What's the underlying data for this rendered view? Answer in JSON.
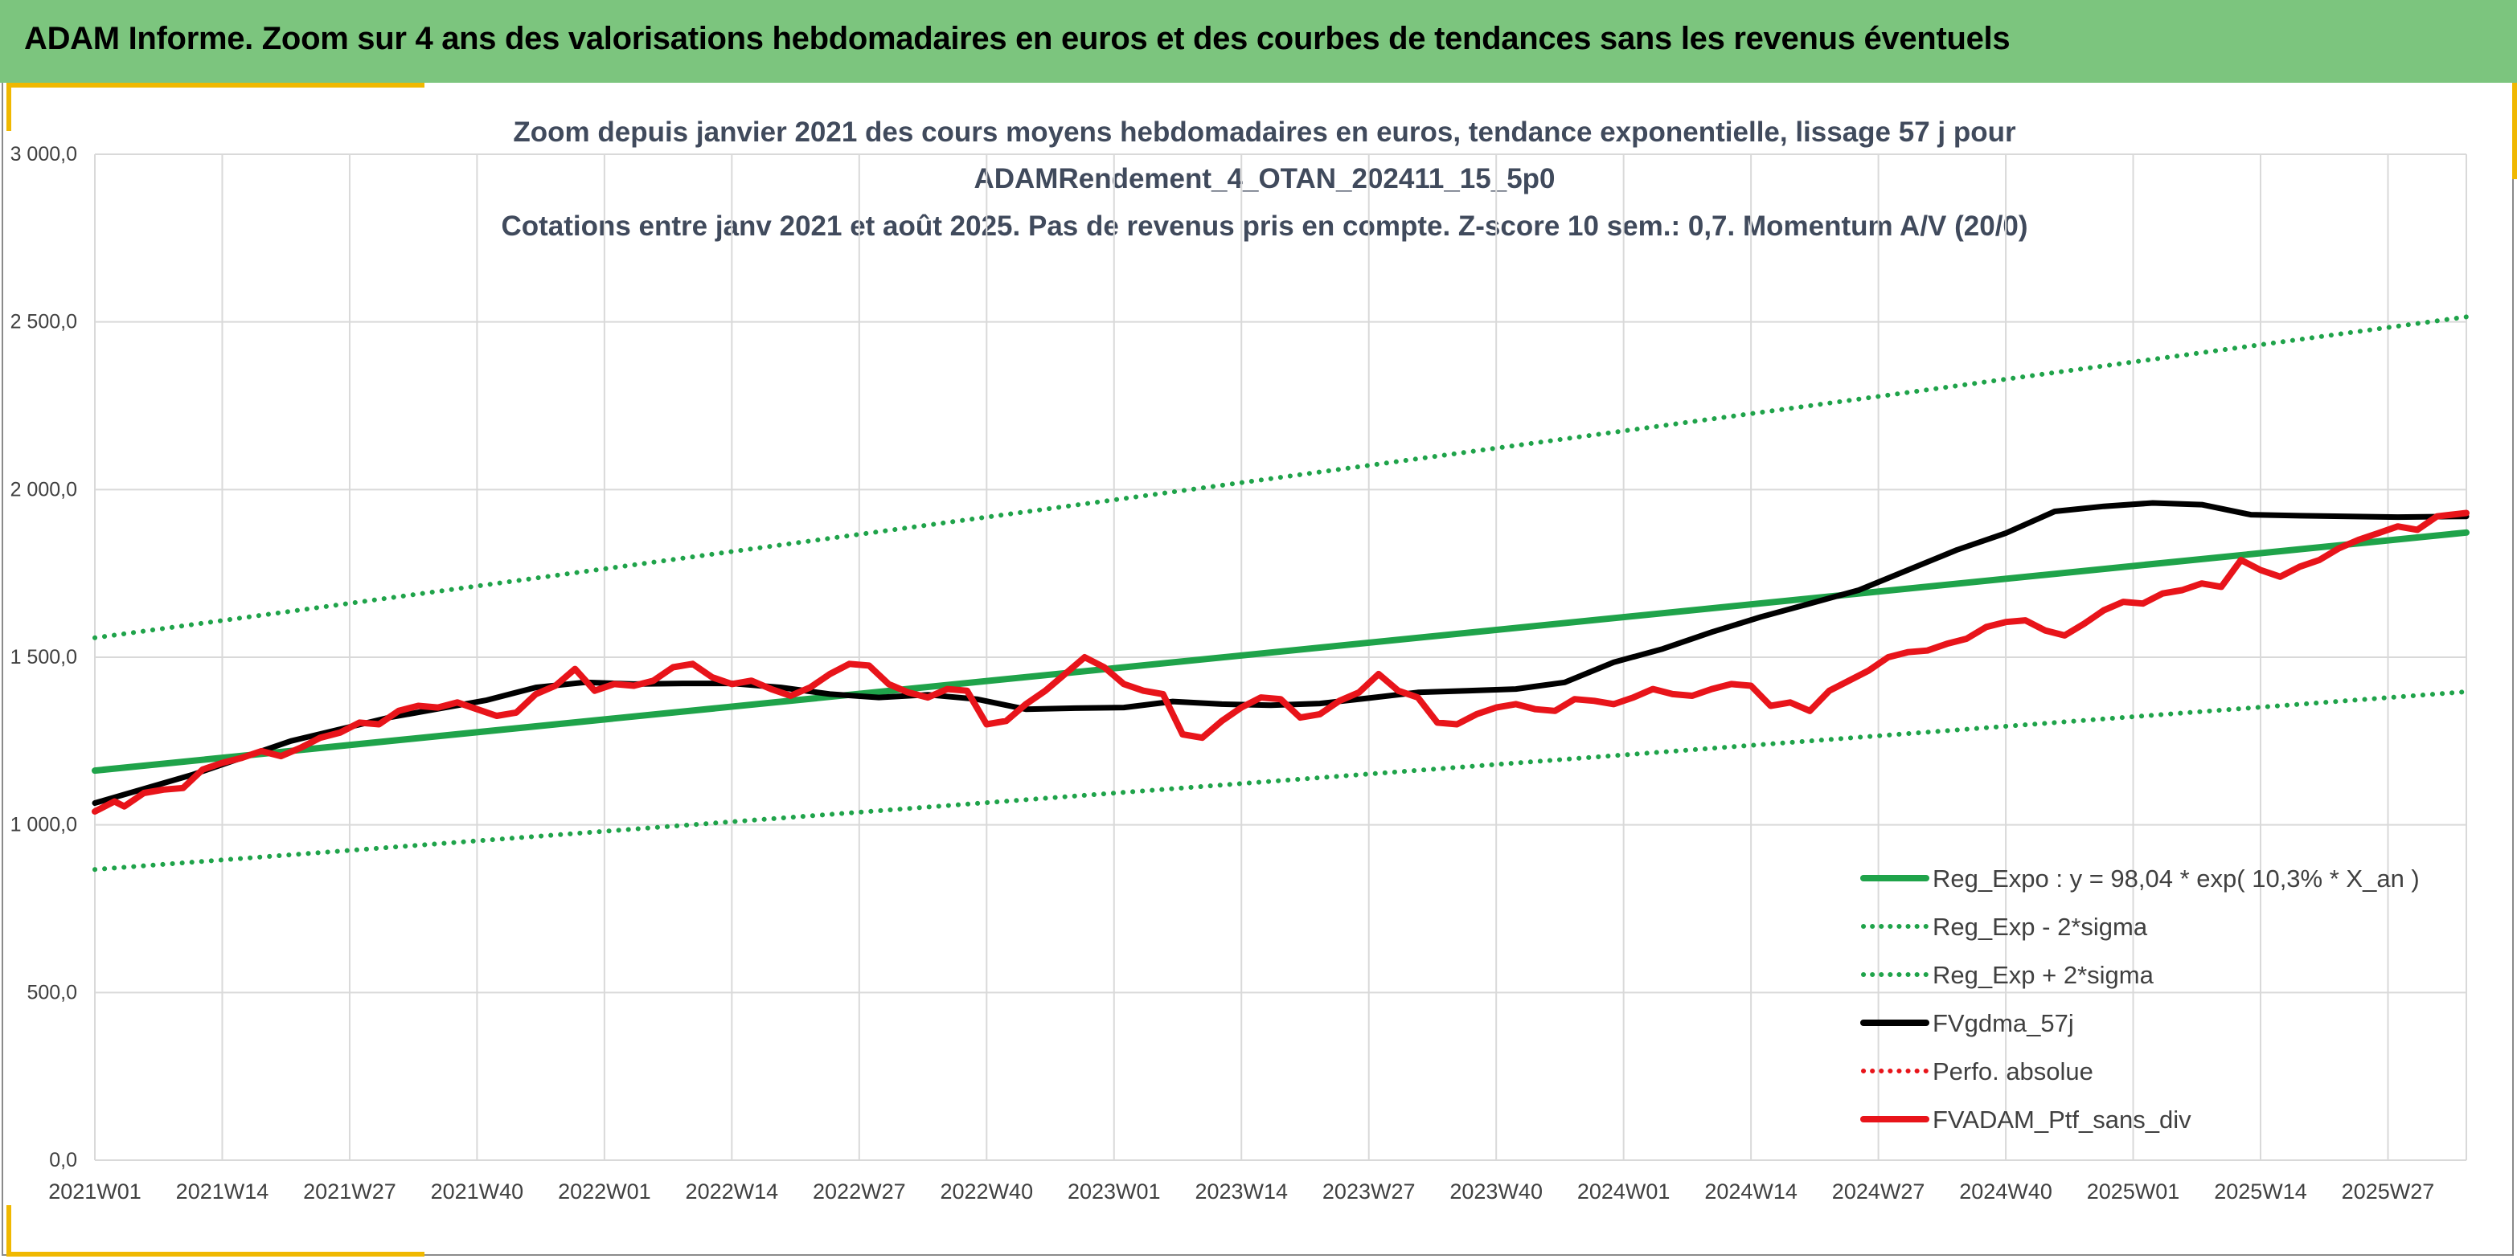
{
  "banner": {
    "title": "ADAM Informe. Zoom sur 4 ans des valorisations hebdomadaires en euros et des courbes de tendances sans les revenus éventuels"
  },
  "colors": {
    "banner_bg": "#7cc57e",
    "accent": "#f0b800",
    "reg_expo": "#1fa34a",
    "fvgdma": "#000000",
    "perfo": "#e8141a",
    "fvadam": "#e8141a",
    "grid": "#d9d9d9",
    "title_text": "#404a5c",
    "tick_text": "#404040"
  },
  "chart_data": {
    "type": "line",
    "title_lines": [
      "Zoom depuis janvier 2021 des cours moyens hebdomadaires en euros, tendance exponentielle, lissage 57 j pour",
      "ADAMRendement_4_OTAN_202411_15_5p0",
      "Cotations entre janv 2021 et août 2025. Pas de revenus pris en compte. Z-score 10 sem.: 0,7. Momentum A/V (20/0)"
    ],
    "xlabel": "",
    "ylabel": "",
    "ylim": [
      0,
      3000
    ],
    "yticks": [
      "0,0",
      "500,0",
      "1 000,0",
      "1 500,0",
      "2 000,0",
      "2 500,0",
      "3 000,0"
    ],
    "ytick_values": [
      0,
      500,
      1000,
      1500,
      2000,
      2500,
      3000
    ],
    "xlim": [
      0,
      242
    ],
    "xticks": [
      "2021W01",
      "2021W14",
      "2021W27",
      "2021W40",
      "2022W01",
      "2022W14",
      "2022W27",
      "2022W40",
      "2023W01",
      "2023W14",
      "2023W27",
      "2023W40",
      "2024W01",
      "2024W14",
      "2024W27",
      "2024W40",
      "2025W01",
      "2025W14",
      "2025W27"
    ],
    "xtick_values": [
      0,
      13,
      26,
      39,
      52,
      65,
      78,
      91,
      104,
      117,
      130,
      143,
      156,
      169,
      182,
      195,
      208,
      221,
      234
    ],
    "grid": true,
    "legend_position": "bottom-right",
    "series": [
      {
        "name": "Reg_Expo : y = 98,04 * exp( 10,3% *  X_an )",
        "style": "solid",
        "x": [
          0,
          242
        ],
        "y": [
          1162,
          1872
        ]
      },
      {
        "name": "Reg_Exp - 2*sigma",
        "style": "dotted",
        "x": [
          0,
          242
        ],
        "y": [
          867,
          1397
        ]
      },
      {
        "name": "Reg_Exp + 2*sigma",
        "style": "dotted",
        "x": [
          0,
          242
        ],
        "y": [
          1558,
          2515
        ]
      },
      {
        "name": "FVgdma_57j",
        "style": "solid",
        "x": [
          0,
          10,
          20,
          30,
          40,
          45,
          50,
          55,
          60,
          65,
          70,
          75,
          80,
          85,
          90,
          95,
          100,
          105,
          110,
          115,
          120,
          125,
          130,
          135,
          140,
          145,
          150,
          155,
          160,
          165,
          170,
          175,
          180,
          185,
          190,
          195,
          200,
          205,
          210,
          215,
          220,
          225,
          230,
          235,
          242
        ],
        "y": [
          1065,
          1150,
          1250,
          1320,
          1372,
          1410,
          1425,
          1420,
          1422,
          1422,
          1410,
          1390,
          1380,
          1388,
          1375,
          1345,
          1348,
          1350,
          1368,
          1360,
          1357,
          1362,
          1378,
          1395,
          1400,
          1405,
          1425,
          1485,
          1525,
          1575,
          1620,
          1660,
          1700,
          1760,
          1820,
          1870,
          1935,
          1950,
          1960,
          1955,
          1925,
          1922,
          1920,
          1918,
          1920
        ]
      },
      {
        "name": "Perfo. absolue",
        "style": "dotted",
        "x": [],
        "y": []
      },
      {
        "name": "FVADAM_Ptf_sans_div",
        "style": "solid",
        "x": [
          0,
          2,
          3,
          5,
          7,
          9,
          11,
          13,
          15,
          17,
          19,
          21,
          23,
          25,
          27,
          29,
          31,
          33,
          35,
          37,
          39,
          41,
          43,
          45,
          47,
          49,
          51,
          53,
          55,
          57,
          59,
          61,
          63,
          65,
          67,
          69,
          71,
          73,
          75,
          77,
          79,
          81,
          83,
          85,
          87,
          89,
          91,
          93,
          95,
          97,
          99,
          101,
          103,
          105,
          107,
          109,
          111,
          113,
          115,
          117,
          119,
          121,
          123,
          125,
          127,
          129,
          131,
          133,
          135,
          137,
          139,
          141,
          143,
          145,
          147,
          149,
          151,
          153,
          155,
          157,
          159,
          161,
          163,
          165,
          167,
          169,
          171,
          173,
          175,
          177,
          179,
          181,
          183,
          185,
          187,
          189,
          191,
          193,
          195,
          197,
          199,
          201,
          203,
          205,
          207,
          209,
          211,
          213,
          215,
          217,
          219,
          221,
          223,
          225,
          227,
          229,
          231,
          233,
          235,
          237,
          239,
          242
        ],
        "y": [
          1040,
          1070,
          1055,
          1095,
          1105,
          1110,
          1165,
          1185,
          1200,
          1220,
          1205,
          1230,
          1260,
          1275,
          1305,
          1300,
          1340,
          1355,
          1350,
          1365,
          1345,
          1325,
          1335,
          1390,
          1415,
          1465,
          1400,
          1420,
          1415,
          1430,
          1470,
          1480,
          1440,
          1420,
          1430,
          1405,
          1385,
          1410,
          1450,
          1480,
          1475,
          1420,
          1395,
          1380,
          1405,
          1400,
          1300,
          1310,
          1360,
          1400,
          1450,
          1500,
          1470,
          1420,
          1400,
          1390,
          1270,
          1260,
          1310,
          1350,
          1380,
          1375,
          1320,
          1330,
          1370,
          1395,
          1450,
          1400,
          1380,
          1305,
          1300,
          1330,
          1350,
          1360,
          1345,
          1340,
          1375,
          1370,
          1360,
          1380,
          1405,
          1390,
          1385,
          1405,
          1420,
          1415,
          1355,
          1365,
          1340,
          1400,
          1430,
          1460,
          1500,
          1515,
          1520,
          1540,
          1555,
          1590,
          1605,
          1610,
          1580,
          1565,
          1600,
          1640,
          1665,
          1660,
          1690,
          1700,
          1720,
          1710,
          1790,
          1760,
          1740,
          1770,
          1790,
          1825,
          1850,
          1870,
          1890,
          1880,
          1920,
          1930
        ],
        "note": ""
      }
    ]
  },
  "legend": {
    "items": [
      {
        "label": "Reg_Expo : y = 98,04 * exp( 10,3% *  X_an )",
        "style": "solid",
        "color": "#1fa34a"
      },
      {
        "label": "Reg_Exp - 2*sigma",
        "style": "dotted",
        "color": "#1fa34a"
      },
      {
        "label": "Reg_Exp + 2*sigma",
        "style": "dotted",
        "color": "#1fa34a"
      },
      {
        "label": "FVgdma_57j",
        "style": "solid",
        "color": "#000000"
      },
      {
        "label": "Perfo. absolue",
        "style": "dotted",
        "color": "#e8141a"
      },
      {
        "label": "FVADAM_Ptf_sans_div",
        "style": "solid",
        "color": "#e8141a"
      }
    ]
  }
}
